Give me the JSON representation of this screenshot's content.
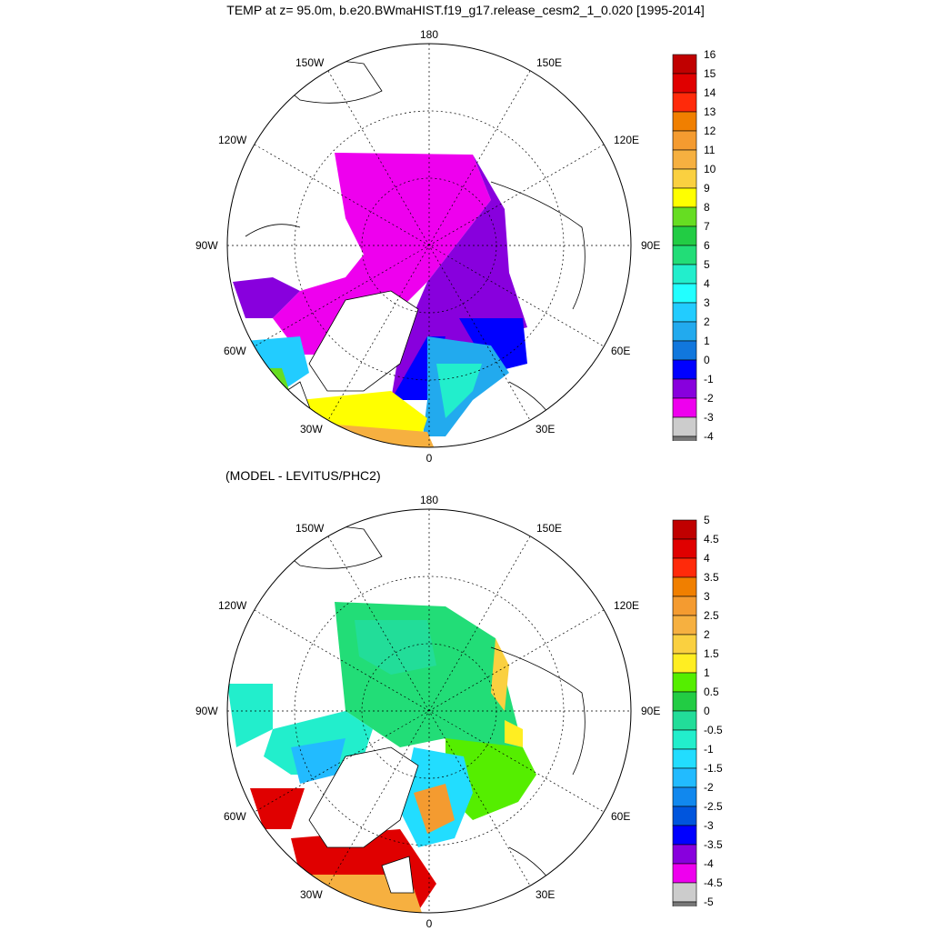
{
  "title": "TEMP at z=  95.0m, b.e20.BWmaHIST.f19_g17.release_cesm2_1_0.020 [1995-2014]",
  "subtitle": "(MODEL - LEVITUS/PHC2)",
  "lon_labels": {
    "top": "180",
    "bottom": "0",
    "left": "90W",
    "right": "90E",
    "upper_left_1": "150W",
    "upper_left_2": "120W",
    "upper_right_1": "150E",
    "upper_right_2": "120E",
    "lower_left_1": "60W",
    "lower_left_2": "30W",
    "lower_right_1": "60E",
    "lower_right_2": "30E"
  },
  "colorbar_top": {
    "labels": [
      "16",
      "15",
      "14",
      "13",
      "12",
      "11",
      "10",
      "9",
      "8",
      "7",
      "6",
      "5",
      "4",
      "3",
      "2",
      "1",
      "0",
      "-1",
      "-2",
      "-3",
      "-4"
    ],
    "colors": [
      "#c00000",
      "#e00000",
      "#ff2a0a",
      "#f07f00",
      "#f49b30",
      "#f6b040",
      "#fad040",
      "#ffff00",
      "#66dd22",
      "#22cc44",
      "#22dd77",
      "#22eecc",
      "#22ffff",
      "#22ccff",
      "#22aaee",
      "#1177dd",
      "#0000ff",
      "#8800dd",
      "#ee00ee",
      "#cccccc",
      "#777777"
    ]
  },
  "colorbar_bottom": {
    "labels": [
      "5",
      "4.5",
      "4",
      "3.5",
      "3",
      "2.5",
      "2",
      "1.5",
      "1",
      "0.5",
      "0",
      "-0.5",
      "-1",
      "-1.5",
      "-2",
      "-2.5",
      "-3",
      "-3.5",
      "-4",
      "-4.5",
      "-5"
    ],
    "colors": [
      "#c00000",
      "#e00000",
      "#ff2a0a",
      "#f07f00",
      "#f49b30",
      "#f6b040",
      "#fad040",
      "#ffee22",
      "#55ee00",
      "#22cc44",
      "#22dd99",
      "#22eecc",
      "#22ddff",
      "#22bbff",
      "#1188ee",
      "#0055dd",
      "#0000ff",
      "#8800dd",
      "#ee00ee",
      "#cccccc",
      "#777777"
    ]
  }
}
